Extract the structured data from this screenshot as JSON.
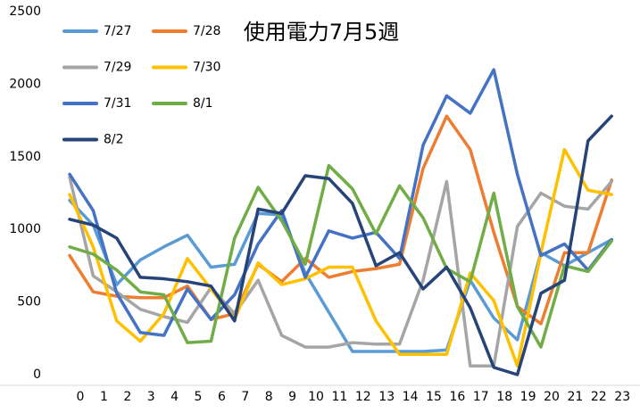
{
  "chart_data": {
    "type": "line",
    "title": "使用電力7月5週",
    "categories": [
      0,
      1,
      2,
      3,
      4,
      5,
      6,
      7,
      8,
      9,
      10,
      11,
      12,
      13,
      14,
      15,
      16,
      17,
      18,
      19,
      20,
      21,
      22,
      23
    ],
    "ylim": [
      0,
      2500
    ],
    "yticks": [
      0,
      500,
      1000,
      1500,
      2000,
      2500
    ],
    "series": [
      {
        "name": "7/27",
        "color": "#5B9BD5",
        "values": [
          1200,
          1030,
          620,
          790,
          880,
          960,
          740,
          760,
          1110,
          1100,
          700,
          430,
          160,
          160,
          160,
          160,
          170,
          650,
          390,
          240,
          840,
          750,
          840,
          930
        ]
      },
      {
        "name": "7/28",
        "color": "#ED7D31",
        "values": [
          820,
          570,
          540,
          530,
          530,
          610,
          380,
          420,
          760,
          640,
          800,
          670,
          710,
          730,
          760,
          1420,
          1780,
          1550,
          980,
          470,
          350,
          840,
          840,
          1340
        ]
      },
      {
        "name": "7/29",
        "color": "#A5A5A5",
        "values": [
          1360,
          680,
          570,
          450,
          400,
          360,
          600,
          420,
          650,
          270,
          190,
          190,
          220,
          210,
          210,
          650,
          1330,
          60,
          60,
          1020,
          1250,
          1160,
          1140,
          1330
        ]
      },
      {
        "name": "7/30",
        "color": "#FFC000",
        "values": [
          1240,
          880,
          370,
          230,
          420,
          800,
          590,
          380,
          770,
          620,
          660,
          740,
          740,
          370,
          140,
          140,
          140,
          700,
          510,
          60,
          840,
          1550,
          1270,
          1240
        ]
      },
      {
        "name": "7/31",
        "color": "#4472C4",
        "values": [
          1380,
          1130,
          560,
          290,
          270,
          590,
          380,
          550,
          900,
          1130,
          670,
          990,
          940,
          980,
          800,
          1580,
          1920,
          1800,
          2100,
          1380,
          820,
          900,
          720,
          930
        ]
      },
      {
        "name": "8/1",
        "color": "#70AD47",
        "values": [
          880,
          830,
          720,
          570,
          550,
          220,
          230,
          940,
          1290,
          1060,
          760,
          1440,
          1280,
          970,
          1300,
          1080,
          730,
          640,
          1250,
          470,
          190,
          750,
          710,
          920
        ]
      },
      {
        "name": "8/2",
        "color": "#264478",
        "values": [
          1070,
          1030,
          940,
          670,
          660,
          640,
          610,
          370,
          1140,
          1110,
          1370,
          1350,
          1180,
          750,
          840,
          590,
          740,
          460,
          50,
          0,
          560,
          650,
          1610,
          1780
        ]
      }
    ]
  }
}
